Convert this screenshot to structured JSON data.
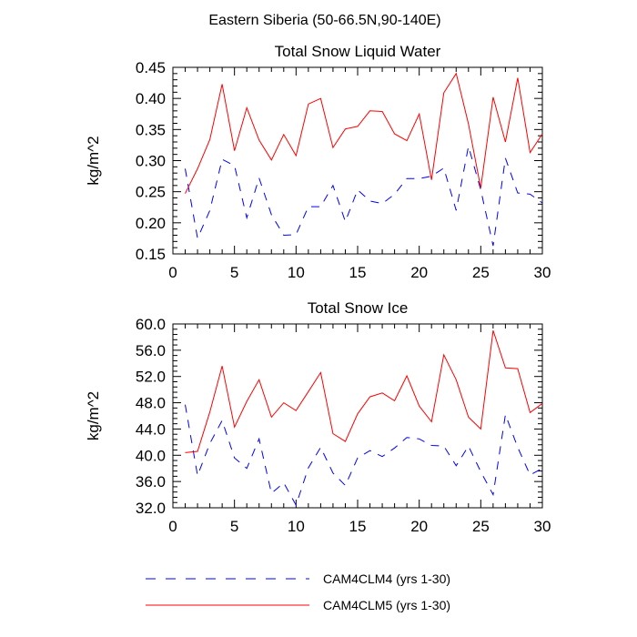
{
  "figure_title": "Eastern Siberia (50-66.5N,90-140E)",
  "legend": {
    "entries": [
      {
        "label": "CAM4CLM4 (yrs 1-30)",
        "color": "#0000ff",
        "dash": "dashed"
      },
      {
        "label": "CAM4CLM5 (yrs 1-30)",
        "color": "#ff0000",
        "dash": "solid"
      }
    ]
  },
  "chart_data": [
    {
      "type": "line",
      "title": "Total Snow Liquid Water",
      "xlabel": "",
      "ylabel": "kg/m^2",
      "xlim": [
        0,
        30
      ],
      "ylim": [
        0.15,
        0.45
      ],
      "xticks": [
        0,
        5,
        10,
        15,
        20,
        25,
        30
      ],
      "xtick_labels": [
        "0",
        "5",
        "10",
        "15",
        "20",
        "25",
        "30"
      ],
      "yticks": [
        0.15,
        0.2,
        0.25,
        0.3,
        0.35,
        0.4,
        0.45
      ],
      "ytick_labels": [
        "0.15",
        "0.20",
        "0.25",
        "0.30",
        "0.35",
        "0.40",
        "0.45"
      ],
      "x": [
        1,
        2,
        3,
        4,
        5,
        6,
        7,
        8,
        9,
        10,
        11,
        12,
        13,
        14,
        15,
        16,
        17,
        18,
        19,
        20,
        21,
        22,
        23,
        24,
        25,
        26,
        27,
        28,
        29,
        30
      ],
      "series": [
        {
          "name": "CAM4CLM4 (yrs 1-30)",
          "color": "#0000ff",
          "dash": "dashed",
          "values": [
            0.287,
            0.175,
            0.22,
            0.302,
            0.292,
            0.208,
            0.272,
            0.213,
            0.18,
            0.181,
            0.226,
            0.226,
            0.26,
            0.202,
            0.253,
            0.235,
            0.231,
            0.246,
            0.271,
            0.271,
            0.275,
            0.288,
            0.22,
            0.323,
            0.253,
            0.163,
            0.304,
            0.248,
            0.246,
            0.232
          ]
        },
        {
          "name": "CAM4CLM5 (yrs 1-30)",
          "color": "#ff0000",
          "dash": "solid",
          "values": [
            0.247,
            0.287,
            0.334,
            0.423,
            0.316,
            0.385,
            0.333,
            0.301,
            0.342,
            0.308,
            0.391,
            0.4,
            0.321,
            0.351,
            0.355,
            0.38,
            0.379,
            0.343,
            0.332,
            0.375,
            0.269,
            0.409,
            0.44,
            0.359,
            0.256,
            0.402,
            0.33,
            0.433,
            0.313,
            0.343
          ]
        }
      ]
    },
    {
      "type": "line",
      "title": "Total Snow Ice",
      "xlabel": "",
      "ylabel": "kg/m^2",
      "xlim": [
        0,
        30
      ],
      "ylim": [
        32.0,
        60.0
      ],
      "xticks": [
        0,
        5,
        10,
        15,
        20,
        25,
        30
      ],
      "xtick_labels": [
        "0",
        "5",
        "10",
        "15",
        "20",
        "25",
        "30"
      ],
      "yticks": [
        32,
        36,
        40,
        44,
        48,
        52,
        56,
        60
      ],
      "ytick_labels": [
        "32.0",
        "36.0",
        "40.0",
        "44.0",
        "48.0",
        "52.0",
        "56.0",
        "60.0"
      ],
      "x": [
        1,
        2,
        3,
        4,
        5,
        6,
        7,
        8,
        9,
        10,
        11,
        12,
        13,
        14,
        15,
        16,
        17,
        18,
        19,
        20,
        21,
        22,
        23,
        24,
        25,
        26,
        27,
        28,
        29,
        30
      ],
      "series": [
        {
          "name": "CAM4CLM4 (yrs 1-30)",
          "color": "#0000ff",
          "dash": "dashed",
          "values": [
            47.7,
            36.9,
            41.8,
            45.3,
            39.6,
            38.0,
            42.5,
            34.2,
            35.8,
            32.4,
            38.1,
            41.2,
            37.3,
            35.4,
            39.6,
            40.7,
            39.8,
            41.1,
            42.7,
            42.5,
            41.5,
            41.4,
            38.4,
            41.4,
            37.5,
            34.0,
            46.2,
            41.2,
            37.0,
            38.0
          ]
        },
        {
          "name": "CAM4CLM5 (yrs 1-30)",
          "color": "#ff0000",
          "dash": "solid",
          "values": [
            40.4,
            40.6,
            46.6,
            53.6,
            44.3,
            48.2,
            51.5,
            45.8,
            48.0,
            46.8,
            49.7,
            52.6,
            43.3,
            42.1,
            46.3,
            48.9,
            49.5,
            48.3,
            52.1,
            47.5,
            45.1,
            55.3,
            51.5,
            45.8,
            44.0,
            59.0,
            53.3,
            53.2,
            46.5,
            47.9
          ]
        }
      ]
    }
  ]
}
